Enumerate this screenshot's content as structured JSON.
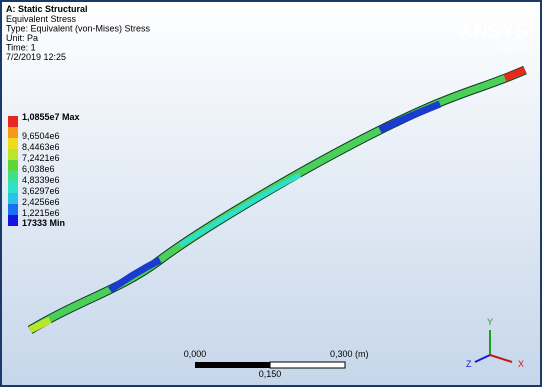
{
  "header": {
    "title": "A: Static Structural",
    "lines": [
      "Equivalent Stress",
      "Type: Equivalent (von-Mises) Stress",
      "Unit: Pa",
      "Time: 1",
      "7/2/2019 12:25"
    ]
  },
  "logo": {
    "name": "ANSYS",
    "version": "R19.0"
  },
  "legend": {
    "items": [
      {
        "label": "1,0855e7 Max",
        "color": "#e8281e"
      },
      {
        "label": "9,6504e6",
        "color": "#f59a18"
      },
      {
        "label": "8,4463e6",
        "color": "#f2dc1a"
      },
      {
        "label": "7,2421e6",
        "color": "#b8e62a"
      },
      {
        "label": "6,038e6",
        "color": "#5cd63a"
      },
      {
        "label": "4,8339e6",
        "color": "#3ee08a"
      },
      {
        "label": "3,6297e6",
        "color": "#2fe0c8"
      },
      {
        "label": "2,4256e6",
        "color": "#28c2ea"
      },
      {
        "label": "1,2215e6",
        "color": "#1a6ff0"
      },
      {
        "label": "17333 Min",
        "color": "#1414e0"
      }
    ]
  },
  "scale_bar": {
    "start": "0,000",
    "end": "0,300 (m)",
    "middle": "0,150"
  },
  "triad": {
    "y": "Y",
    "z": "Z",
    "x": "X"
  }
}
